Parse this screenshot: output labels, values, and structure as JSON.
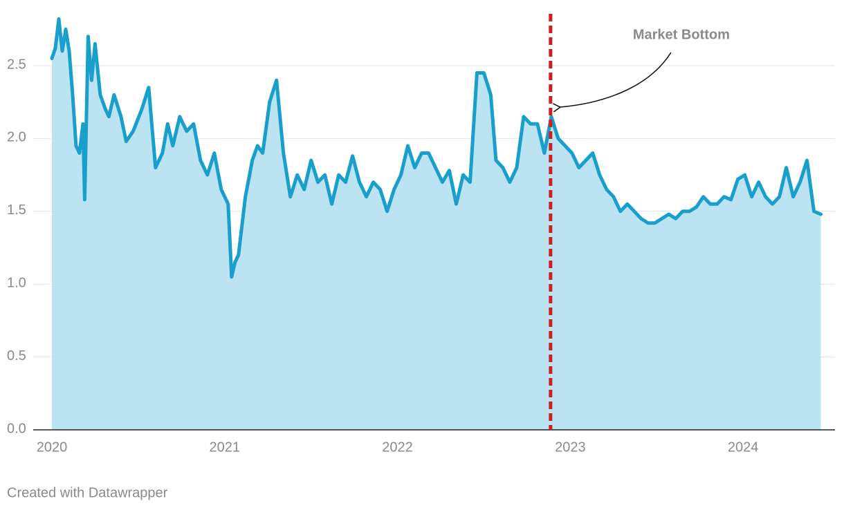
{
  "chart_data": {
    "type": "area",
    "x": [
      2020.0,
      2020.02,
      2020.04,
      2020.06,
      2020.08,
      2020.1,
      2020.12,
      2020.14,
      2020.16,
      2020.18,
      2020.19,
      2020.21,
      2020.23,
      2020.25,
      2020.28,
      2020.31,
      2020.33,
      2020.36,
      2020.4,
      2020.43,
      2020.47,
      2020.52,
      2020.56,
      2020.6,
      2020.64,
      2020.67,
      2020.7,
      2020.74,
      2020.78,
      2020.82,
      2020.86,
      2020.9,
      2020.94,
      2020.98,
      2021.02,
      2021.04,
      2021.06,
      2021.08,
      2021.1,
      2021.12,
      2021.16,
      2021.19,
      2021.22,
      2021.26,
      2021.3,
      2021.34,
      2021.38,
      2021.42,
      2021.46,
      2021.5,
      2021.54,
      2021.58,
      2021.62,
      2021.66,
      2021.7,
      2021.74,
      2021.78,
      2021.82,
      2021.86,
      2021.9,
      2021.94,
      2021.98,
      2022.02,
      2022.06,
      2022.1,
      2022.14,
      2022.18,
      2022.22,
      2022.26,
      2022.3,
      2022.34,
      2022.38,
      2022.42,
      2022.46,
      2022.5,
      2022.54,
      2022.57,
      2022.61,
      2022.65,
      2022.69,
      2022.73,
      2022.77,
      2022.81,
      2022.85,
      2022.89,
      2022.93,
      2022.97,
      2023.01,
      2023.05,
      2023.09,
      2023.13,
      2023.17,
      2023.21,
      2023.25,
      2023.29,
      2023.33,
      2023.37,
      2023.41,
      2023.45,
      2023.49,
      2023.53,
      2023.57,
      2023.61,
      2023.65,
      2023.69,
      2023.73,
      2023.77,
      2023.81,
      2023.85,
      2023.89,
      2023.93,
      2023.97,
      2024.01,
      2024.05,
      2024.09,
      2024.13,
      2024.17,
      2024.21,
      2024.25,
      2024.29,
      2024.33,
      2024.37,
      2024.41,
      2024.45
    ],
    "series": [
      {
        "color": "#199fcb",
        "fill": "#bce3f1",
        "values": [
          2.55,
          2.62,
          2.82,
          2.6,
          2.75,
          2.6,
          2.3,
          1.95,
          1.9,
          2.1,
          1.58,
          2.7,
          2.4,
          2.65,
          2.3,
          2.2,
          2.15,
          2.3,
          2.15,
          1.98,
          2.05,
          2.2,
          2.35,
          1.8,
          1.9,
          2.1,
          1.95,
          2.15,
          2.05,
          2.1,
          1.85,
          1.75,
          1.9,
          1.65,
          1.55,
          1.05,
          1.15,
          1.2,
          1.4,
          1.6,
          1.85,
          1.95,
          1.9,
          2.25,
          2.4,
          1.9,
          1.6,
          1.75,
          1.65,
          1.85,
          1.7,
          1.75,
          1.55,
          1.75,
          1.7,
          1.88,
          1.7,
          1.6,
          1.7,
          1.65,
          1.5,
          1.65,
          1.75,
          1.95,
          1.8,
          1.9,
          1.9,
          1.8,
          1.7,
          1.78,
          1.55,
          1.75,
          1.7,
          2.45,
          2.45,
          2.3,
          1.85,
          1.8,
          1.7,
          1.8,
          2.15,
          2.1,
          2.1,
          1.9,
          2.15,
          2.0,
          1.95,
          1.9,
          1.8,
          1.85,
          1.9,
          1.75,
          1.65,
          1.6,
          1.5,
          1.55,
          1.5,
          1.45,
          1.42,
          1.42,
          1.45,
          1.48,
          1.45,
          1.5,
          1.5,
          1.53,
          1.6,
          1.55,
          1.55,
          1.6,
          1.58,
          1.72,
          1.75,
          1.6,
          1.7,
          1.6,
          1.55,
          1.6,
          1.8,
          1.6,
          1.7,
          1.85,
          1.5,
          1.48
        ]
      }
    ],
    "xlim": [
      2019.892,
      2024.532
    ],
    "xticks": [
      2020,
      2021,
      2022,
      2023,
      2024
    ],
    "ylim": [
      0,
      2.85
    ],
    "yticks": [
      {
        "value": 0,
        "label": "0.0"
      },
      0.5,
      {
        "value": 1,
        "label": "1.0"
      },
      1.5,
      {
        "value": 2,
        "label": "2.0"
      },
      2.5
    ],
    "grid": true,
    "annotations": [
      {
        "x": 2022.886,
        "label": "Market Bottom",
        "color": "#cc1f1f"
      }
    ],
    "source": "Created with Datawrapper"
  }
}
